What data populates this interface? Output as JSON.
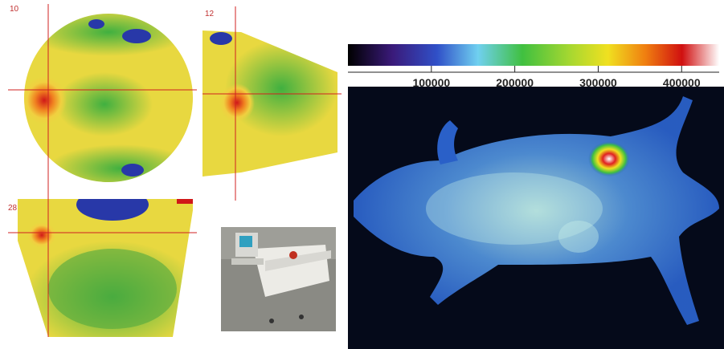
{
  "panels": {
    "labels": [
      "10",
      "12",
      "28"
    ]
  },
  "colorbar": {
    "lim": [
      0,
      445000
    ],
    "ticks": [
      100000,
      200000,
      300000,
      400000
    ]
  }
}
